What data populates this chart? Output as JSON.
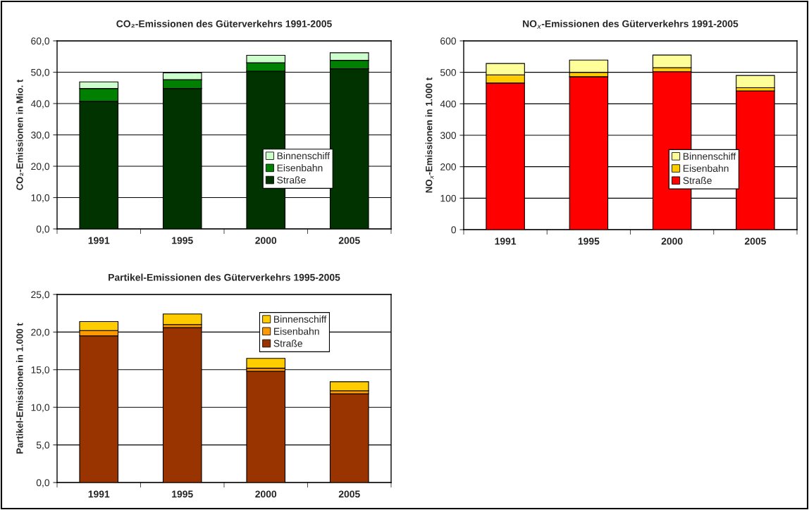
{
  "chart_data": [
    {
      "type": "bar",
      "title": "CO₂-Emissionen des Güterverkehrs 1991-2005",
      "ylabel": "CO₂-Emissionen in Mio. t",
      "categories": [
        "1991",
        "1995",
        "2000",
        "2005"
      ],
      "stacked": true,
      "series": [
        {
          "name": "Straße",
          "color": "#003300",
          "values": [
            40.7,
            44.8,
            50.3,
            51.1
          ]
        },
        {
          "name": "Eisenbahn",
          "color": "#008000",
          "values": [
            4.1,
            2.8,
            2.7,
            2.7
          ]
        },
        {
          "name": "Binnenschiff",
          "color": "#ccffcc",
          "values": [
            2.1,
            2.2,
            2.4,
            2.4
          ]
        }
      ],
      "ylim": [
        0,
        60
      ],
      "yticks": [
        {
          "value": 0,
          "label": "0,0"
        },
        {
          "value": 10,
          "label": "10,0"
        },
        {
          "value": 20,
          "label": "20,0"
        },
        {
          "value": 30,
          "label": "30,0"
        },
        {
          "value": 40,
          "label": "40,0"
        },
        {
          "value": 50,
          "label": "50,0"
        },
        {
          "value": 60,
          "label": "60,0"
        }
      ],
      "grid": "y",
      "legend": "right"
    },
    {
      "type": "bar",
      "title": "NO$_{x}$-Emissionen des Güterverkehrs 1991-2005",
      "ylabel": "NO$_{x}$-Emissionen in 1.000 t",
      "categories": [
        "1991",
        "1995",
        "2000",
        "2005"
      ],
      "stacked": true,
      "series": [
        {
          "name": "Straße",
          "color": "#ff0000",
          "values": [
            466,
            486,
            502,
            441
          ]
        },
        {
          "name": "Eisenbahn",
          "color": "#ffcc00",
          "values": [
            26,
            14,
            13,
            10
          ]
        },
        {
          "name": "Binnenschiff",
          "color": "#ffff99",
          "values": [
            36,
            39,
            40,
            39
          ]
        }
      ],
      "ylim": [
        0,
        600
      ],
      "yticks": [
        0,
        100,
        200,
        300,
        400,
        500,
        600
      ],
      "grid": "y",
      "legend": "right"
    },
    {
      "type": "bar",
      "title": "Partikel-Emissionen des Güterverkehrs 1995-2005",
      "ylabel": "Partikel-Emissionen in 1.000 t",
      "categories": [
        "1991",
        "1995",
        "2000",
        "2005"
      ],
      "stacked": true,
      "series": [
        {
          "name": "Straße",
          "color": "#993300",
          "values": [
            19.5,
            20.6,
            14.8,
            11.8
          ]
        },
        {
          "name": "Eisenbahn",
          "color": "#ff9900",
          "values": [
            0.7,
            0.4,
            0.4,
            0.4
          ]
        },
        {
          "name": "Binnenschiff",
          "color": "#ffcc00",
          "values": [
            1.2,
            1.4,
            1.3,
            1.2
          ]
        }
      ],
      "ylim": [
        0,
        25
      ],
      "yticks": [
        {
          "value": 0,
          "label": "0,0"
        },
        {
          "value": 5,
          "label": "5,0"
        },
        {
          "value": 10,
          "label": "10,0"
        },
        {
          "value": 15,
          "label": "15,0"
        },
        {
          "value": 20,
          "label": "20,0"
        },
        {
          "value": 25,
          "label": "25,0"
        }
      ],
      "grid": "y",
      "legend": "top right"
    }
  ]
}
